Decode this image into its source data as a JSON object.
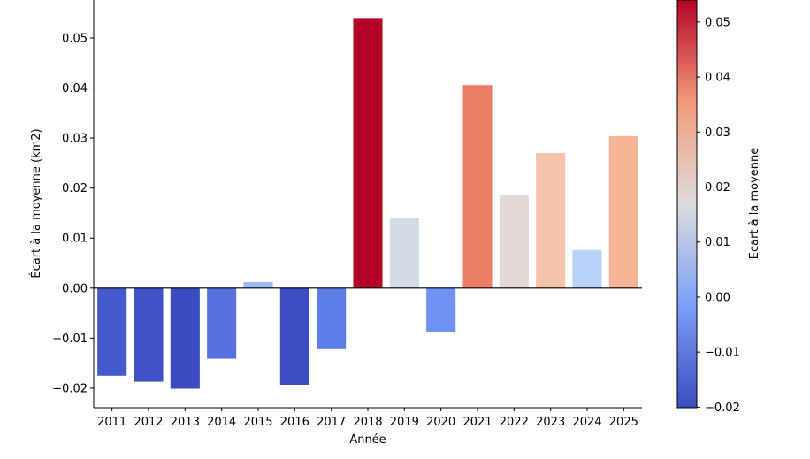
{
  "chart_data": {
    "type": "bar",
    "title": "",
    "xlabel": "Année",
    "ylabel": "Écart à la moyenne (km2)",
    "categories": [
      "2011",
      "2012",
      "2013",
      "2014",
      "2015",
      "2016",
      "2017",
      "2018",
      "2019",
      "2020",
      "2021",
      "2022",
      "2023",
      "2024",
      "2025"
    ],
    "values": [
      -0.0175,
      -0.0187,
      -0.0201,
      -0.0141,
      0.0012,
      -0.0193,
      -0.0122,
      0.054,
      0.014,
      -0.0087,
      0.0406,
      0.0187,
      0.027,
      0.0076,
      0.0304
    ],
    "colors": [
      "#445acc",
      "#3e51c5",
      "#3b4cc0",
      "#5572df",
      "#9abbff",
      "#3c4ec2",
      "#5d7ce6",
      "#b40426",
      "#d3dbe7",
      "#6f92f3",
      "#ec7f63",
      "#e2dad5",
      "#f5c2aa",
      "#b9d0f9",
      "#f6b497"
    ],
    "ylim": [
      -0.0239,
      0.0576
    ],
    "yticks": [
      "−0.02",
      "−0.01",
      "0.00",
      "0.01",
      "0.02",
      "0.03",
      "0.04",
      "0.05"
    ],
    "ytick_values": [
      -0.02,
      -0.01,
      0,
      0.01,
      0.02,
      0.03,
      0.04,
      0.05
    ],
    "zero_line": true,
    "grid": false,
    "colorbar": {
      "label": "Ecart à la moyenne",
      "colormap": "coolwarm",
      "range": [
        -0.0201,
        0.054
      ],
      "ticks": [
        "−0.02",
        "−0.01",
        "0.00",
        "0.01",
        "0.02",
        "0.03",
        "0.04",
        "0.05"
      ],
      "tick_values": [
        -0.02,
        -0.01,
        0,
        0.01,
        0.02,
        0.03,
        0.04,
        0.05
      ],
      "placement": "right"
    }
  }
}
